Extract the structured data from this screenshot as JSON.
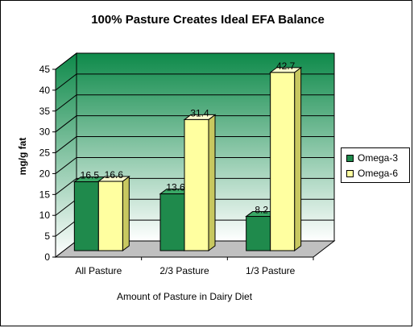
{
  "chart_data": {
    "type": "bar",
    "title": "100% Pasture Creates Ideal EFA Balance",
    "xlabel": "Amount of Pasture in Dairy Diet",
    "ylabel": "mg/g fat",
    "categories": [
      "All Pasture",
      "2/3 Pasture",
      "1/3 Pasture"
    ],
    "series": [
      {
        "name": "Omega-3",
        "values": [
          16.5,
          13.6,
          8.2
        ],
        "labels": [
          "16.5",
          "13.6",
          "8.2"
        ]
      },
      {
        "name": "Omega-6",
        "values": [
          16.6,
          31.4,
          42.7
        ],
        "labels": [
          "16.6",
          "31.4",
          "42.7"
        ]
      }
    ],
    "ylim": [
      0,
      45
    ],
    "yticks": [
      0,
      5,
      10,
      15,
      20,
      25,
      30,
      35,
      40,
      45
    ],
    "grid": true,
    "legend": "right",
    "style": "3d",
    "colors": {
      "omega3": "#1f8a4c",
      "omega3_side": "#0f5a30",
      "omega3_top": "#3aa866",
      "omega6": "#ffffa0",
      "omega6_side": "#c8c860",
      "omega6_top": "#ffffd0",
      "wall_top": "#0e8a4a",
      "wall_bottom": "#ffffff",
      "floor": "#c0c0c0"
    }
  }
}
